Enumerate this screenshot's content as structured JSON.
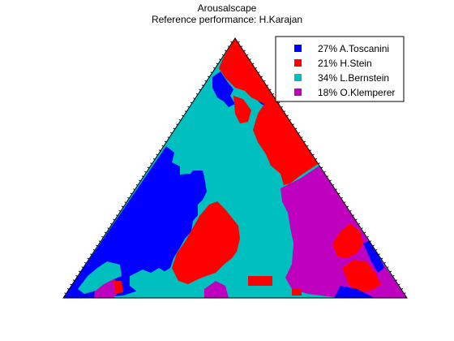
{
  "chart_data": {
    "type": "heatmap",
    "subtype": "ternary-region-map",
    "title": "Arousalscape",
    "subtitle": "Reference performance: H.Karajan",
    "grid": false,
    "legend_position": "top-right",
    "legend": [
      {
        "label": "27% A.Toscanini",
        "color": "#0000ff",
        "percent": 27
      },
      {
        "label": "21% H.Stein",
        "color": "#ff0000",
        "percent": 21
      },
      {
        "label": "34% L.Bernstein",
        "color": "#00bfbf",
        "percent": 34
      },
      {
        "label": "18% O.Klemperer",
        "color": "#bf00bf",
        "percent": 18
      }
    ]
  }
}
